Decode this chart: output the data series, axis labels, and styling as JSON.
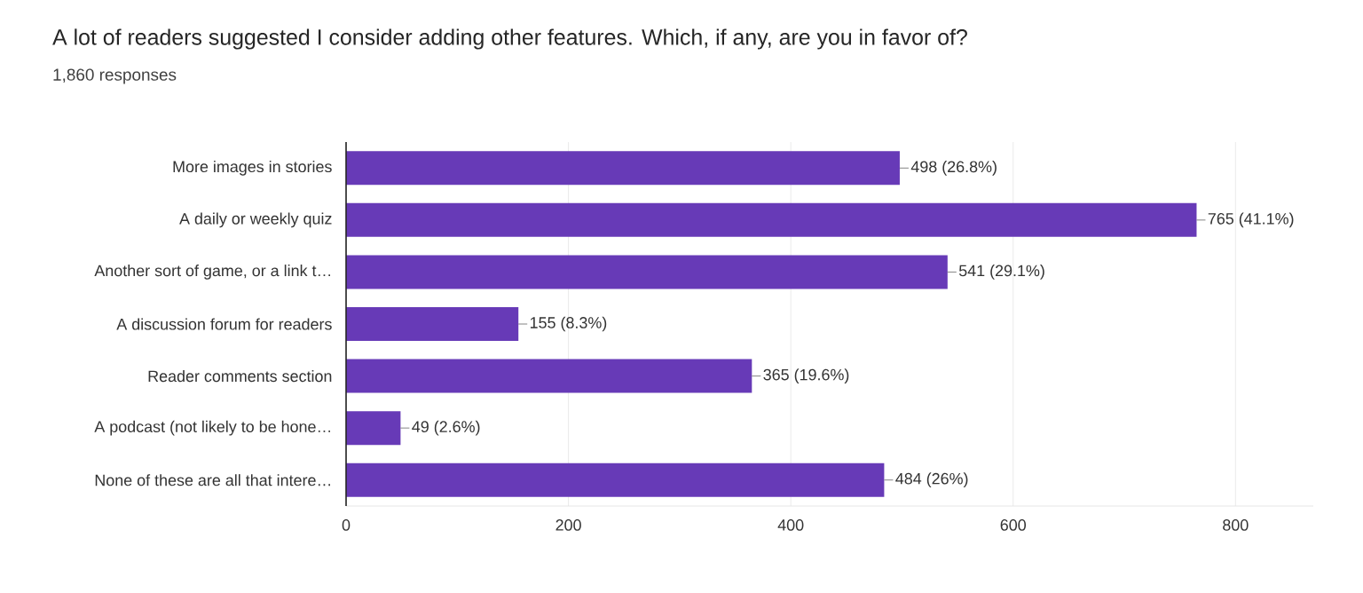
{
  "chart_data": {
    "type": "bar",
    "orientation": "horizontal",
    "title": "A lot of readers suggested I consider adding other features. Which, if any, are you in favor of?",
    "subtitle": "1,860 responses",
    "categories": [
      "More images in stories",
      "A daily or weekly quiz",
      "Another sort of game, or a link t…",
      "A discussion forum for readers",
      "Reader comments section",
      "A podcast (not likely to be hone…",
      "None of these are all that intere…"
    ],
    "values": [
      498,
      765,
      541,
      155,
      365,
      49,
      484
    ],
    "value_labels": [
      "498 (26.8%)",
      "765 (41.1%)",
      "541 (29.1%)",
      "155 (8.3%)",
      "365 (19.6%)",
      "49 (2.6%)",
      "484 (26%)"
    ],
    "color": "#673ab7",
    "xlim": [
      0,
      870
    ],
    "xticks": [
      0,
      200,
      400,
      600,
      800
    ],
    "grid": "x"
  }
}
